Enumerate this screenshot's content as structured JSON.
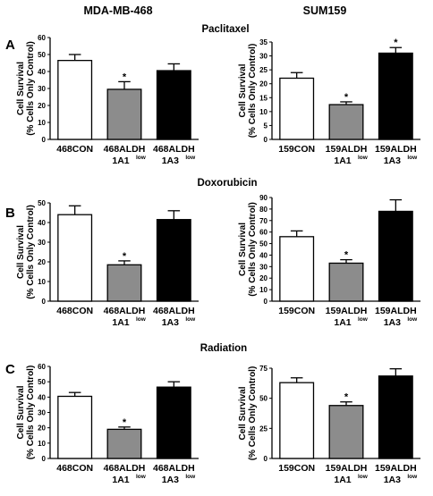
{
  "column_titles": [
    "MDA-MB-468",
    "SUM159"
  ],
  "treatments": [
    "Paclitaxel",
    "Doxorubicin",
    "Radiation"
  ],
  "panel_letters": [
    "A",
    "B",
    "C"
  ],
  "bar_colors": [
    "#ffffff",
    "#8c8c8c",
    "#000000"
  ],
  "chart_data": [
    {
      "type": "bar",
      "id": "A-468",
      "panel": "A",
      "treatment": "Paclitaxel",
      "cell_line": "MDA-MB-468",
      "ylabel_lines": [
        "Cell Survival",
        "(% Cells Only Control)"
      ],
      "ylim": [
        0,
        60
      ],
      "yticks": [
        0,
        10,
        20,
        30,
        40,
        50,
        60
      ],
      "categories": [
        {
          "main": "468CON",
          "sub": "",
          "sup": ""
        },
        {
          "main": "468ALDH",
          "sub": "1A1",
          "sup": "low"
        },
        {
          "main": "468ALDH",
          "sub": "1A3",
          "sup": "low"
        }
      ],
      "values": [
        46.5,
        29.5,
        40.5
      ],
      "errors": [
        3.5,
        4.5,
        4.0
      ],
      "significant": [
        false,
        true,
        false
      ]
    },
    {
      "type": "bar",
      "id": "A-159",
      "panel": "A",
      "treatment": "Paclitaxel",
      "cell_line": "SUM159",
      "ylabel_lines": [
        "Cell Survival",
        "(% Cells Only Control)"
      ],
      "ylim": [
        0,
        35
      ],
      "yticks": [
        0,
        5,
        10,
        15,
        20,
        25,
        30,
        35
      ],
      "categories": [
        {
          "main": "159CON",
          "sub": "",
          "sup": ""
        },
        {
          "main": "159ALDH",
          "sub": "1A1",
          "sup": "low"
        },
        {
          "main": "159ALDH",
          "sub": "1A3",
          "sup": "low"
        }
      ],
      "values": [
        22,
        12.5,
        31
      ],
      "errors": [
        2,
        1,
        2
      ],
      "significant": [
        false,
        true,
        true
      ]
    },
    {
      "type": "bar",
      "id": "B-468",
      "panel": "B",
      "treatment": "Doxorubicin",
      "cell_line": "MDA-MB-468",
      "ylabel_lines": [
        "Cell Survival",
        "(% Cells Only Control)"
      ],
      "ylim": [
        0,
        50
      ],
      "yticks": [
        0,
        10,
        20,
        30,
        40,
        50
      ],
      "categories": [
        {
          "main": "468CON",
          "sub": "",
          "sup": ""
        },
        {
          "main": "468ALDH",
          "sub": "1A1",
          "sup": "low"
        },
        {
          "main": "468ALDH",
          "sub": "1A3",
          "sup": "low"
        }
      ],
      "values": [
        44,
        18.5,
        41.5
      ],
      "errors": [
        4.5,
        2,
        4.5
      ],
      "significant": [
        false,
        true,
        false
      ]
    },
    {
      "type": "bar",
      "id": "B-159",
      "panel": "B",
      "treatment": "Doxorubicin",
      "cell_line": "SUM159",
      "ylabel_lines": [
        "Cell Survival",
        "(% Cells Only Control)"
      ],
      "ylim": [
        0,
        90
      ],
      "yticks": [
        0,
        10,
        20,
        30,
        40,
        50,
        60,
        70,
        80,
        90
      ],
      "categories": [
        {
          "main": "159CON",
          "sub": "",
          "sup": ""
        },
        {
          "main": "159ALDH",
          "sub": "1A1",
          "sup": "low"
        },
        {
          "main": "159ALDH",
          "sub": "1A3",
          "sup": "low"
        }
      ],
      "values": [
        56,
        33,
        78
      ],
      "errors": [
        5,
        3,
        10
      ],
      "significant": [
        false,
        true,
        false
      ]
    },
    {
      "type": "bar",
      "id": "C-468",
      "panel": "C",
      "treatment": "Radiation",
      "cell_line": "MDA-MB-468",
      "ylabel_lines": [
        "Cell Survival",
        "(% Cells Only Control)"
      ],
      "ylim": [
        0,
        60
      ],
      "yticks": [
        0,
        10,
        20,
        30,
        40,
        50,
        60
      ],
      "categories": [
        {
          "main": "468CON",
          "sub": "",
          "sup": ""
        },
        {
          "main": "468ALDH",
          "sub": "1A1",
          "sup": "low"
        },
        {
          "main": "468ALDH",
          "sub": "1A3",
          "sup": "low"
        }
      ],
      "values": [
        40.5,
        19,
        46.5
      ],
      "errors": [
        2.5,
        1.5,
        3.5
      ],
      "significant": [
        false,
        true,
        false
      ]
    },
    {
      "type": "bar",
      "id": "C-159",
      "panel": "C",
      "treatment": "Radiation",
      "cell_line": "SUM159",
      "ylabel_lines": [
        "Cell Survival",
        "(% Cells Only Control)"
      ],
      "ylim": [
        0,
        75
      ],
      "yticks": [
        0,
        25,
        50,
        75
      ],
      "categories": [
        {
          "main": "159CON",
          "sub": "",
          "sup": ""
        },
        {
          "main": "159ALDH",
          "sub": "1A1",
          "sup": "low"
        },
        {
          "main": "159ALDH",
          "sub": "1A3",
          "sup": "low"
        }
      ],
      "values": [
        63,
        44,
        68.5
      ],
      "errors": [
        4,
        3,
        6
      ],
      "significant": [
        false,
        true,
        false
      ]
    }
  ]
}
